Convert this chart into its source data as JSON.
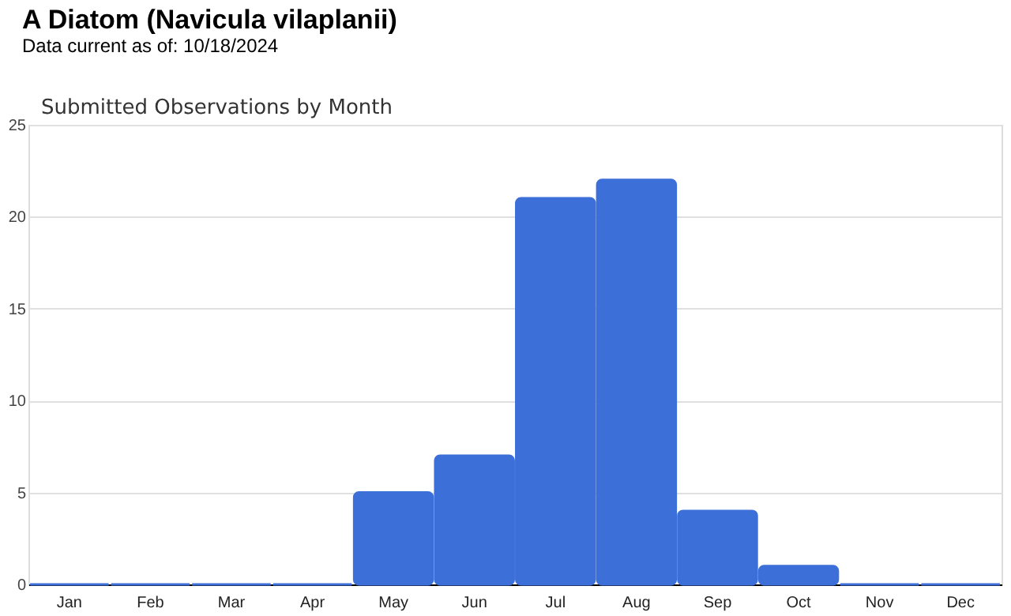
{
  "chart_data": {
    "type": "bar",
    "title": "A Diatom   (Navicula vilaplanii)",
    "subtitle": "Data current as of: 10/18/2024",
    "annotations": [
      "Submitted Observations by Month"
    ],
    "categories": [
      "Jan",
      "Feb",
      "Mar",
      "Apr",
      "May",
      "Jun",
      "Jul",
      "Aug",
      "Sep",
      "Oct",
      "Nov",
      "Dec"
    ],
    "values": [
      0,
      0,
      0,
      0,
      5,
      7,
      21,
      22,
      4,
      1,
      0,
      0
    ],
    "color": "#3d6fd9",
    "ylim": [
      0,
      25
    ],
    "yticks": [
      0,
      5,
      10,
      15,
      20,
      25
    ],
    "grid": "y"
  }
}
